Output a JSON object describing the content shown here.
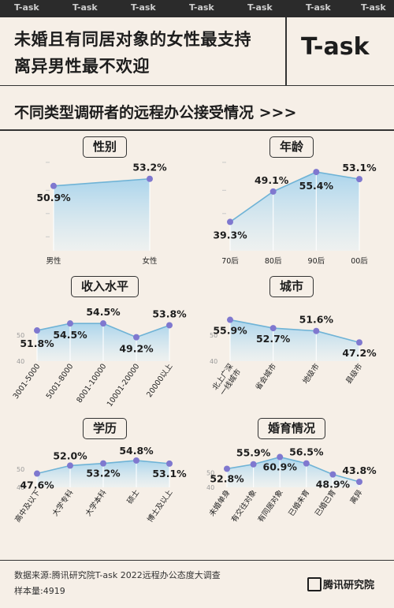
{
  "topbar": {
    "watermark": "T-ask"
  },
  "header": {
    "headline_1": "未婚且有同居对象的女性最支持",
    "headline_2": "离异男性最不欢迎",
    "brand": "T-ask"
  },
  "section": {
    "title": "不同类型调研者的远程办公接受情况 >>>"
  },
  "footer": {
    "source": "数据来源:腾讯研究院T-ask 2022远程办公态度大调查",
    "sample": "样本量:4919",
    "logo_text": "腾讯研究院"
  },
  "colors": {
    "background": "#f6efe7",
    "point": "#7f78cf",
    "line": "#6fb3d6",
    "area_top": "#a7d3ec",
    "area_bottom": "#e9f2f5"
  },
  "chart_data": [
    {
      "type": "area",
      "title": "性别",
      "categories": [
        "男性",
        "女性"
      ],
      "values": [
        50.9,
        53.2
      ],
      "labels": [
        "50.9%",
        "53.2%"
      ],
      "ylim": [
        30,
        60
      ],
      "yticks": []
    },
    {
      "type": "area",
      "title": "年龄",
      "categories": [
        "70后",
        "80后",
        "90后",
        "00后"
      ],
      "values": [
        39.3,
        49.1,
        55.4,
        53.1
      ],
      "labels": [
        "39.3%",
        "49.1%",
        "55.4%",
        "53.1%"
      ],
      "ylim": [
        30,
        60
      ],
      "yticks": []
    },
    {
      "type": "area",
      "title": "收入水平",
      "categories": [
        "3001-5000",
        "5001-8000",
        "8001-10000",
        "10001-20000",
        "20000以上"
      ],
      "values": [
        51.8,
        54.5,
        54.5,
        49.2,
        53.8
      ],
      "labels": [
        "51.8%",
        "54.5%",
        "54.5%",
        "49.2%",
        "53.8%"
      ],
      "ylim": [
        40,
        60
      ],
      "yticks": [
        50,
        40
      ]
    },
    {
      "type": "area",
      "title": "城市",
      "categories": [
        "北上广深\n一线城市",
        "省会城市",
        "地级市",
        "县级市"
      ],
      "values": [
        55.9,
        52.7,
        51.6,
        47.2
      ],
      "labels": [
        "55.9%",
        "52.7%",
        "51.6%",
        "47.2%"
      ],
      "ylim": [
        40,
        60
      ],
      "yticks": [
        50,
        40
      ]
    },
    {
      "type": "area",
      "title": "学历",
      "categories": [
        "高中及以下",
        "大学专科",
        "大学本科",
        "硕士",
        "博士及以上"
      ],
      "values": [
        47.6,
        52.0,
        53.2,
        54.8,
        53.1
      ],
      "labels": [
        "47.6%",
        "52.0%",
        "53.2%",
        "54.8%",
        "53.1%"
      ],
      "ylim": [
        40,
        60
      ],
      "yticks": [
        50,
        40
      ]
    },
    {
      "type": "area",
      "title": "婚育情况",
      "categories": [
        "未婚单身",
        "有交往对象",
        "有同居对象",
        "已婚未育",
        "已婚已育",
        "离异"
      ],
      "values": [
        52.8,
        55.9,
        60.9,
        56.5,
        48.9,
        43.8
      ],
      "labels": [
        "52.8%",
        "55.9%",
        "60.9%",
        "56.5%",
        "48.9%",
        "43.8%"
      ],
      "ylim": [
        40,
        65
      ],
      "yticks": [
        50,
        40
      ]
    }
  ]
}
